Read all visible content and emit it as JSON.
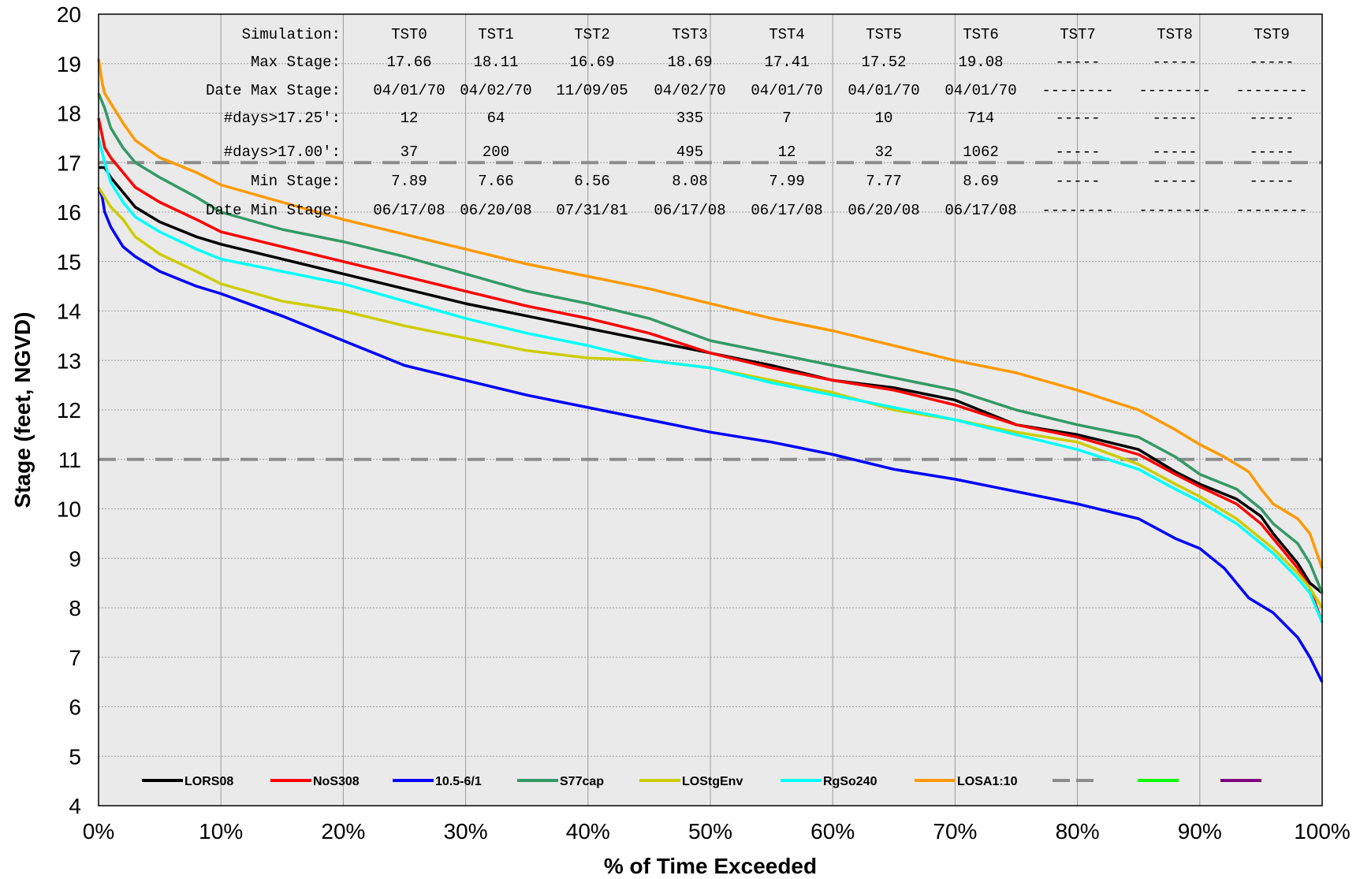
{
  "chart_data": {
    "type": "line",
    "xlabel": "% of Time Exceeded",
    "ylabel": "Stage (feet, NGVD)",
    "xlim": [
      0,
      100
    ],
    "ylim": [
      4,
      20
    ],
    "x_tick_labels": [
      "0%",
      "10%",
      "20%",
      "30%",
      "40%",
      "50%",
      "60%",
      "70%",
      "80%",
      "90%",
      "100%"
    ],
    "y_ticks": [
      4,
      5,
      6,
      7,
      8,
      9,
      10,
      11,
      12,
      13,
      14,
      15,
      16,
      17,
      18,
      19,
      20
    ],
    "grid": true,
    "reference_lines": [
      {
        "y": 17,
        "style": "dashed",
        "color": "#8c8c8c"
      },
      {
        "y": 11,
        "style": "dashed",
        "color": "#8c8c8c"
      }
    ],
    "legend_position": "bottom",
    "series": [
      {
        "name": "LORS08",
        "color": "#000000",
        "x": [
          0,
          0.5,
          1,
          2,
          3,
          5,
          8,
          10,
          15,
          20,
          25,
          30,
          35,
          40,
          45,
          50,
          55,
          60,
          65,
          70,
          75,
          80,
          85,
          88,
          90,
          93,
          95,
          96,
          98,
          99,
          100
        ],
        "y": [
          16.9,
          16.9,
          16.7,
          16.4,
          16.1,
          15.8,
          15.5,
          15.35,
          15.05,
          14.75,
          14.45,
          14.15,
          13.9,
          13.65,
          13.4,
          13.15,
          12.9,
          12.6,
          12.45,
          12.2,
          11.7,
          11.5,
          11.2,
          10.75,
          10.5,
          10.2,
          9.85,
          9.5,
          8.9,
          8.5,
          8.3
        ]
      },
      {
        "name": "NoS308",
        "color": "#ff0000",
        "x": [
          0,
          0.5,
          1,
          2,
          3,
          5,
          8,
          10,
          15,
          20,
          25,
          30,
          35,
          40,
          45,
          50,
          55,
          60,
          65,
          70,
          75,
          80,
          85,
          88,
          90,
          93,
          95,
          96,
          98,
          99,
          100
        ],
        "y": [
          17.9,
          17.3,
          17.1,
          16.8,
          16.5,
          16.2,
          15.85,
          15.6,
          15.3,
          15.0,
          14.7,
          14.4,
          14.1,
          13.85,
          13.55,
          13.15,
          12.85,
          12.6,
          12.4,
          12.1,
          11.7,
          11.45,
          11.1,
          10.7,
          10.45,
          10.1,
          9.7,
          9.4,
          8.8,
          8.4,
          7.7
        ]
      },
      {
        "name": "10.5-6/1",
        "color": "#0000ff",
        "x": [
          0,
          0.3,
          0.5,
          1,
          2,
          3,
          5,
          8,
          10,
          15,
          20,
          25,
          30,
          35,
          40,
          45,
          50,
          55,
          60,
          65,
          70,
          75,
          80,
          85,
          88,
          90,
          92,
          94,
          96,
          98,
          99,
          100
        ],
        "y": [
          16.5,
          16.3,
          16.0,
          15.7,
          15.3,
          15.1,
          14.8,
          14.5,
          14.35,
          13.9,
          13.4,
          12.9,
          12.6,
          12.3,
          12.05,
          11.8,
          11.55,
          11.35,
          11.1,
          10.8,
          10.6,
          10.35,
          10.1,
          9.8,
          9.4,
          9.2,
          8.8,
          8.2,
          7.9,
          7.4,
          7.0,
          6.5
        ]
      },
      {
        "name": "S77cap",
        "color": "#339966",
        "x": [
          0,
          0.5,
          1,
          2,
          3,
          5,
          8,
          10,
          15,
          20,
          25,
          30,
          35,
          40,
          45,
          50,
          55,
          60,
          65,
          70,
          75,
          80,
          85,
          88,
          90,
          93,
          95,
          96,
          98,
          99,
          100
        ],
        "y": [
          18.4,
          18.1,
          17.7,
          17.3,
          17.0,
          16.7,
          16.3,
          16.0,
          15.65,
          15.4,
          15.1,
          14.75,
          14.4,
          14.15,
          13.85,
          13.4,
          13.15,
          12.9,
          12.65,
          12.4,
          12.0,
          11.7,
          11.45,
          11.05,
          10.7,
          10.4,
          10.0,
          9.7,
          9.3,
          8.9,
          8.3
        ]
      },
      {
        "name": "LOStgEnv",
        "color": "#cccc00",
        "x": [
          0,
          0.5,
          1,
          2,
          3,
          5,
          8,
          10,
          15,
          20,
          25,
          30,
          35,
          40,
          45,
          50,
          55,
          60,
          65,
          70,
          75,
          80,
          85,
          88,
          90,
          93,
          95,
          96,
          98,
          99,
          100
        ],
        "y": [
          16.5,
          16.3,
          16.1,
          15.85,
          15.5,
          15.15,
          14.8,
          14.55,
          14.2,
          14.0,
          13.7,
          13.45,
          13.2,
          13.05,
          13.0,
          12.85,
          12.6,
          12.35,
          12.0,
          11.8,
          11.55,
          11.35,
          10.9,
          10.5,
          10.25,
          9.8,
          9.4,
          9.2,
          8.7,
          8.4,
          8.0
        ]
      },
      {
        "name": "RgSo240",
        "color": "#00ffff",
        "x": [
          0,
          0.5,
          1,
          2,
          3,
          5,
          8,
          10,
          15,
          20,
          25,
          30,
          35,
          40,
          45,
          50,
          55,
          60,
          65,
          70,
          75,
          80,
          85,
          88,
          90,
          93,
          95,
          96,
          98,
          99,
          100
        ],
        "y": [
          17.5,
          17.0,
          16.6,
          16.2,
          15.9,
          15.6,
          15.25,
          15.05,
          14.8,
          14.55,
          14.2,
          13.85,
          13.55,
          13.3,
          13.0,
          12.85,
          12.55,
          12.3,
          12.05,
          11.8,
          11.5,
          11.2,
          10.8,
          10.4,
          10.15,
          9.7,
          9.3,
          9.1,
          8.6,
          8.3,
          7.7
        ]
      },
      {
        "name": "LOSA1:10",
        "color": "#ff9900",
        "x": [
          0,
          0.3,
          0.5,
          1,
          2,
          3,
          5,
          8,
          10,
          15,
          20,
          25,
          30,
          35,
          40,
          45,
          50,
          55,
          60,
          65,
          70,
          75,
          80,
          85,
          88,
          90,
          92,
          94,
          95,
          96,
          98,
          99,
          100
        ],
        "y": [
          19.1,
          18.6,
          18.4,
          18.2,
          17.8,
          17.45,
          17.1,
          16.8,
          16.55,
          16.2,
          15.85,
          15.55,
          15.25,
          14.95,
          14.7,
          14.45,
          14.15,
          13.85,
          13.6,
          13.3,
          13.0,
          12.75,
          12.4,
          12.0,
          11.6,
          11.3,
          11.05,
          10.75,
          10.4,
          10.1,
          9.8,
          9.5,
          8.8
        ]
      }
    ],
    "legend": [
      {
        "name": "LORS08",
        "color": "#000000",
        "style": "solid"
      },
      {
        "name": "NoS308",
        "color": "#ff0000",
        "style": "solid"
      },
      {
        "name": "10.5-6/1",
        "color": "#0000ff",
        "style": "solid"
      },
      {
        "name": "S77cap",
        "color": "#339966",
        "style": "solid"
      },
      {
        "name": "LOStgEnv",
        "color": "#cccc00",
        "style": "solid"
      },
      {
        "name": "RgSo240",
        "color": "#00ffff",
        "style": "solid"
      },
      {
        "name": "LOSA1:10",
        "color": "#ff9900",
        "style": "solid"
      },
      {
        "name": "",
        "color": "#8c8c8c",
        "style": "dashed"
      },
      {
        "name": "",
        "color": "#00ff00",
        "style": "solid"
      },
      {
        "name": "",
        "color": "#800080",
        "style": "solid"
      }
    ],
    "stats_table": {
      "row_labels": [
        "Simulation:",
        "Max Stage:",
        "Date Max Stage:",
        "#days>17.25':",
        "#days>17.00':",
        "Min Stage:",
        "Date Min Stage:"
      ],
      "columns": [
        {
          "cells": [
            "TST0",
            "17.66",
            "04/01/70",
            "12",
            "37",
            "7.89",
            "06/17/08"
          ]
        },
        {
          "cells": [
            "TST1",
            "18.11",
            "04/02/70",
            "64",
            "200",
            "7.66",
            "06/20/08"
          ]
        },
        {
          "cells": [
            "TST2",
            "16.69",
            "11/09/05",
            "",
            "",
            "6.56",
            "07/31/81"
          ]
        },
        {
          "cells": [
            "TST3",
            "18.69",
            "04/02/70",
            "335",
            "495",
            "8.08",
            "06/17/08"
          ]
        },
        {
          "cells": [
            "TST4",
            "17.41",
            "04/01/70",
            "7",
            "12",
            "7.99",
            "06/17/08"
          ]
        },
        {
          "cells": [
            "TST5",
            "17.52",
            "04/01/70",
            "10",
            "32",
            "7.77",
            "06/20/08"
          ]
        },
        {
          "cells": [
            "TST6",
            "19.08",
            "04/01/70",
            "714",
            "1062",
            "8.69",
            "06/17/08"
          ]
        },
        {
          "cells": [
            "TST7",
            "-----",
            "--------",
            "-----",
            "-----",
            "-----",
            "--------"
          ]
        },
        {
          "cells": [
            "TST8",
            "-----",
            "--------",
            "-----",
            "-----",
            "-----",
            "--------"
          ]
        },
        {
          "cells": [
            "TST9",
            "-----",
            "--------",
            "-----",
            "-----",
            "-----",
            "--------"
          ]
        }
      ]
    }
  }
}
